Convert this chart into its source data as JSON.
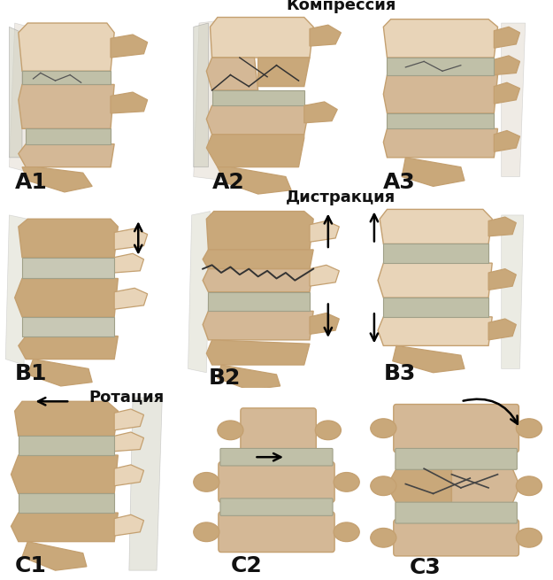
{
  "title_row1": "Компрессия",
  "title_row2": "Дистракция",
  "title_row3": "Ротация",
  "labels_row1": [
    "А1",
    "А2",
    "А3"
  ],
  "labels_row2": [
    "В1",
    "В2",
    "В3"
  ],
  "labels_row3": [
    "С1",
    "С2",
    "С3"
  ],
  "row_bg_light": "#f5ddc8",
  "row_bg_dark": "#e8cfb4",
  "border_color": "#1a1a1a",
  "text_color": "#111111",
  "bone_main": "#d4b896",
  "bone_dark": "#c4a070",
  "bone_med": "#c9a87a",
  "bone_light": "#e8d4b8",
  "disc_color": "#c0c0a8",
  "disc_dark": "#a0a088",
  "title_fontsize": 13,
  "label_fontsize": 18,
  "fig_width": 6.25,
  "fig_height": 6.55,
  "dpi": 100
}
